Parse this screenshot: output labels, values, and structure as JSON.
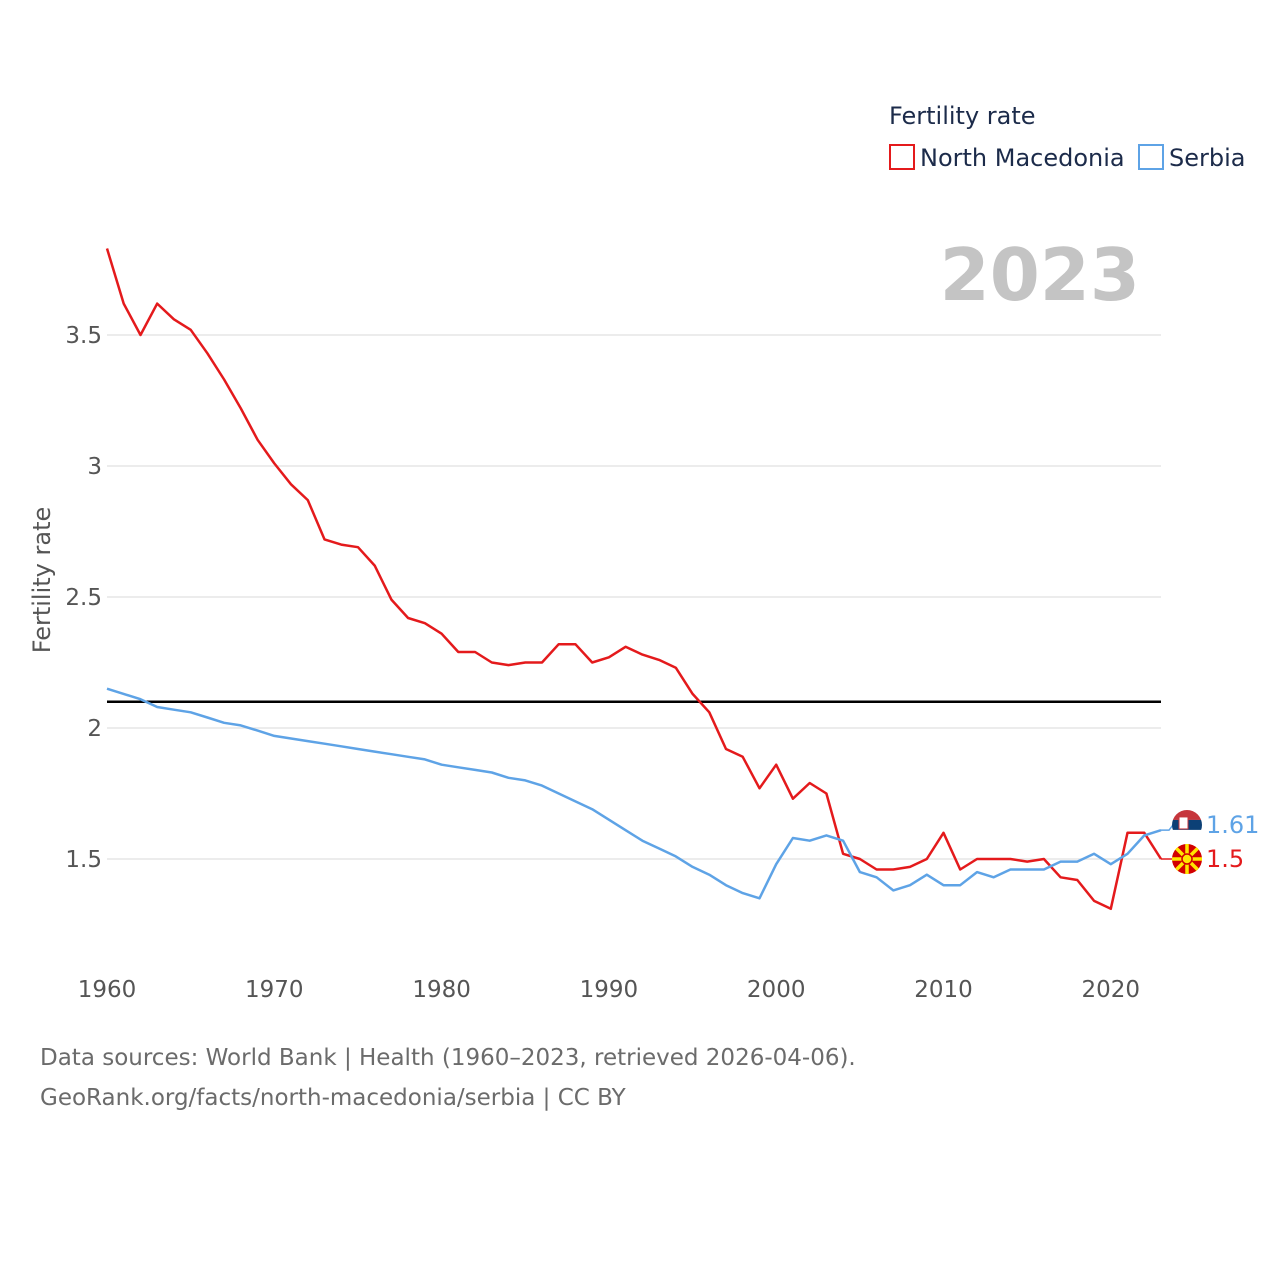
{
  "chart_data": {
    "type": "line",
    "title": "",
    "year_label": "2023",
    "xlabel": "",
    "ylabel": "Fertility rate",
    "xlim": [
      1960,
      2023
    ],
    "ylim": [
      1.15,
      3.9
    ],
    "x_ticks": [
      1960,
      1970,
      1980,
      1990,
      2000,
      2010,
      2020
    ],
    "x_tick_labels": [
      "1960",
      "1970",
      "1980",
      "1990",
      "2000",
      "2010",
      "2020"
    ],
    "y_ticks": [
      1.5,
      2,
      2.5,
      3,
      3.5
    ],
    "y_tick_labels": [
      "1.5",
      "2",
      "2.5",
      "3",
      "3.5"
    ],
    "reference_line": 2.1,
    "legend_title": "Fertility rate",
    "legend_position": "top-right",
    "x": [
      1960,
      1961,
      1962,
      1963,
      1964,
      1965,
      1966,
      1967,
      1968,
      1969,
      1970,
      1971,
      1972,
      1973,
      1974,
      1975,
      1976,
      1977,
      1978,
      1979,
      1980,
      1981,
      1982,
      1983,
      1984,
      1985,
      1986,
      1987,
      1988,
      1989,
      1990,
      1991,
      1992,
      1993,
      1994,
      1995,
      1996,
      1997,
      1998,
      1999,
      2000,
      2001,
      2002,
      2003,
      2004,
      2005,
      2006,
      2007,
      2008,
      2009,
      2010,
      2011,
      2012,
      2013,
      2014,
      2015,
      2016,
      2017,
      2018,
      2019,
      2020,
      2021,
      2022,
      2023
    ],
    "series": [
      {
        "name": "North Macedonia",
        "color": "#e41a1c",
        "end_label": "1.5",
        "flag_icon": "north-macedonia-flag-icon",
        "values": [
          3.83,
          3.62,
          3.5,
          3.62,
          3.56,
          3.52,
          3.43,
          3.33,
          3.22,
          3.1,
          3.01,
          2.93,
          2.87,
          2.72,
          2.7,
          2.69,
          2.62,
          2.49,
          2.42,
          2.4,
          2.36,
          2.29,
          2.29,
          2.25,
          2.24,
          2.25,
          2.25,
          2.32,
          2.32,
          2.25,
          2.27,
          2.31,
          2.28,
          2.26,
          2.23,
          2.13,
          2.06,
          1.92,
          1.89,
          1.77,
          1.86,
          1.73,
          1.79,
          1.75,
          1.52,
          1.5,
          1.46,
          1.46,
          1.47,
          1.5,
          1.6,
          1.46,
          1.5,
          1.5,
          1.5,
          1.49,
          1.5,
          1.43,
          1.42,
          1.34,
          1.31,
          1.6,
          1.6,
          1.5
        ]
      },
      {
        "name": "Serbia",
        "color": "#5ea3e6",
        "end_label": "1.61",
        "flag_icon": "serbia-flag-icon",
        "values": [
          2.15,
          2.13,
          2.11,
          2.08,
          2.07,
          2.06,
          2.04,
          2.02,
          2.01,
          1.99,
          1.97,
          1.96,
          1.95,
          1.94,
          1.93,
          1.92,
          1.91,
          1.9,
          1.89,
          1.88,
          1.86,
          1.85,
          1.84,
          1.83,
          1.81,
          1.8,
          1.78,
          1.75,
          1.72,
          1.69,
          1.65,
          1.61,
          1.57,
          1.54,
          1.51,
          1.47,
          1.44,
          1.4,
          1.37,
          1.35,
          1.48,
          1.58,
          1.57,
          1.59,
          1.57,
          1.45,
          1.43,
          1.38,
          1.4,
          1.44,
          1.4,
          1.4,
          1.45,
          1.43,
          1.46,
          1.46,
          1.46,
          1.49,
          1.49,
          1.52,
          1.48,
          1.52,
          1.59,
          1.61
        ]
      }
    ]
  },
  "footer": {
    "sources_line": "Data sources: World Bank | Health (1960–2023, retrieved 2026-04-06).",
    "credit_line": "GeoRank.org/facts/north-macedonia/serbia | CC BY"
  }
}
